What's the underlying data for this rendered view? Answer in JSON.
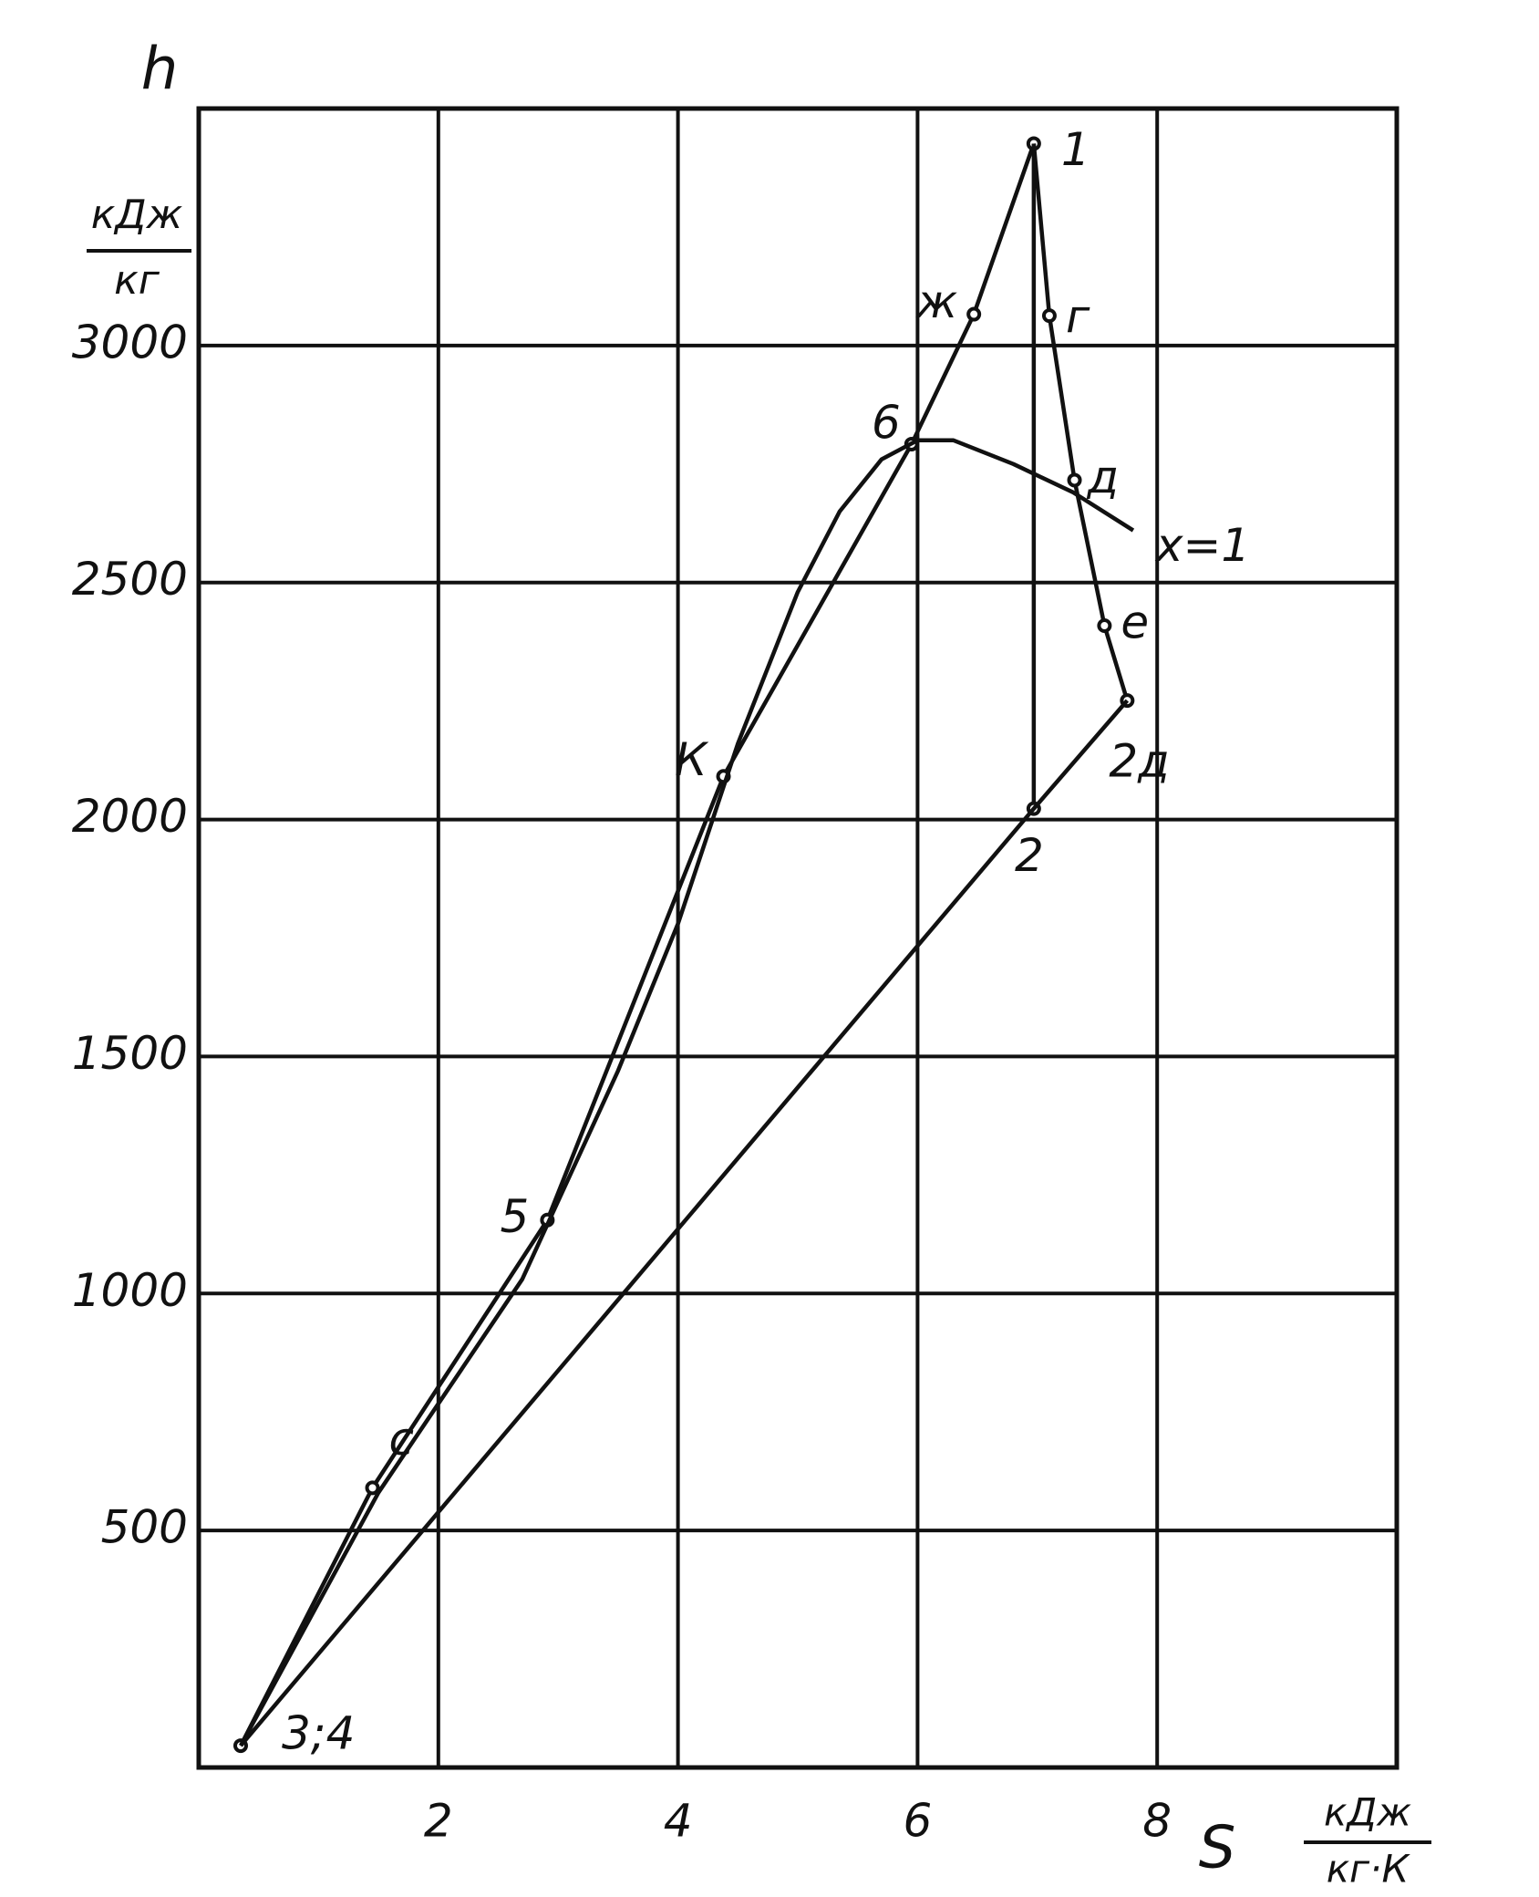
{
  "chart_data": {
    "type": "line",
    "ylabel": "h",
    "yunit_top": "кДж",
    "yunit_bottom": "кг",
    "xlabel": "S",
    "xunit_top": "кДж",
    "xunit_bottom": "кг·К",
    "xlim": [
      0,
      10
    ],
    "xticks": [
      2,
      4,
      6,
      8
    ],
    "ylim": [
      0,
      3500
    ],
    "yticks": [
      500,
      1000,
      1500,
      2000,
      2500,
      3000
    ],
    "grid": true,
    "color": "#111111",
    "series": [
      {
        "x": [
          0.35,
          1.45,
          2.91,
          4.38,
          5.95,
          6.47,
          6.97
        ],
        "values": [
          46,
          590,
          1155,
          2091,
          2792,
          3066,
          3426
        ],
        "labels": [
          "3;4",
          "с",
          "5",
          "К",
          "6",
          "ж",
          "1"
        ]
      },
      {
        "x": [
          6.97,
          6.97
        ],
        "values": [
          3426,
          2023
        ],
        "labels": [
          null,
          "2"
        ]
      },
      {
        "x": [
          6.97,
          7.1,
          7.31,
          7.56,
          7.75
        ],
        "values": [
          3426,
          3063,
          2716,
          2409,
          2251
        ],
        "labels": [
          null,
          "г",
          "д",
          "е",
          "2д"
        ]
      },
      {
        "x": [
          7.75,
          6.97,
          0.35
        ],
        "values": [
          2251,
          2023,
          46
        ],
        "labels": [
          null,
          null,
          null
        ]
      },
      {
        "name": "x=1",
        "x": [
          0.35,
          1.5,
          2.7,
          3.5,
          4.0,
          4.5,
          5.0,
          5.35,
          5.7,
          6.0,
          6.3,
          6.8,
          7.3,
          7.8
        ],
        "values": [
          46,
          580,
          1030,
          1470,
          1780,
          2160,
          2480,
          2650,
          2760,
          2800,
          2800,
          2750,
          2690,
          2610
        ]
      }
    ]
  }
}
